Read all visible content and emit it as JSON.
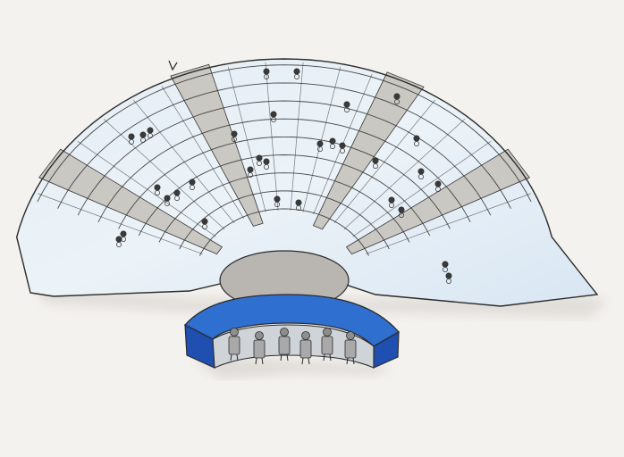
{
  "scene": {
    "subject": "hand-drawn-amphitheater",
    "colors": {
      "paper": "#f4f2ee",
      "seating_fill": "#e6eef6",
      "seating_tint": "#c9dcef",
      "aisle": "#c9c6c0",
      "orchestra": "#b9b6b2",
      "stage_front": "#2f6fd0",
      "stage_deep": "#1f4fb0",
      "stage_wall": "#cfd4d9",
      "ink": "#2b2b2b",
      "shadow": "#d9d6d1"
    },
    "icons": [
      "spectator-doodle-icon",
      "actor-figure-icon",
      "bird-doodle-icon"
    ],
    "audience_count": 32,
    "actor_count": 6
  }
}
